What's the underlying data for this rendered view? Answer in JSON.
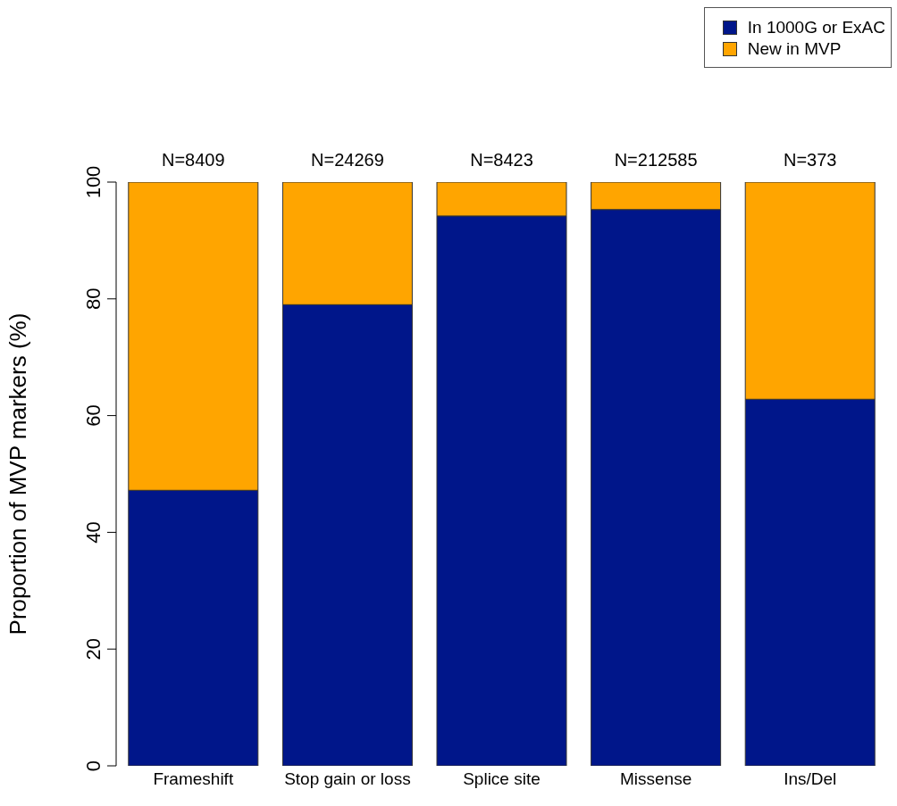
{
  "chart_data": {
    "type": "bar",
    "stacked": true,
    "ylabel": "Proportion of MVP markers (%)",
    "categories": [
      "Frameshift",
      "Stop gain or loss",
      "Splice site",
      "Missense",
      "Ins/Del"
    ],
    "series": [
      {
        "name": "In 1000G or ExAC",
        "color": "#00168a",
        "values": [
          47.2,
          79.0,
          94.2,
          95.3,
          62.8
        ]
      },
      {
        "name": "New in MVP",
        "color": "#ffa500",
        "values": [
          52.8,
          21.0,
          5.8,
          4.7,
          37.2
        ]
      }
    ],
    "annotations": [
      {
        "text": "N=8409",
        "x": "Frameshift",
        "y": 100
      },
      {
        "text": "N=24269",
        "x": "Stop gain or loss",
        "y": 100
      },
      {
        "text": "N=8423",
        "x": "Splice site",
        "y": 100
      },
      {
        "text": "N=212585",
        "x": "Missense",
        "y": 100
      },
      {
        "text": "N=373",
        "x": "Ins/Del",
        "y": 100
      }
    ],
    "ylim": [
      0,
      100
    ],
    "yticks": [
      0,
      20,
      40,
      60,
      80,
      100
    ],
    "grid": false,
    "legend": "top right"
  }
}
